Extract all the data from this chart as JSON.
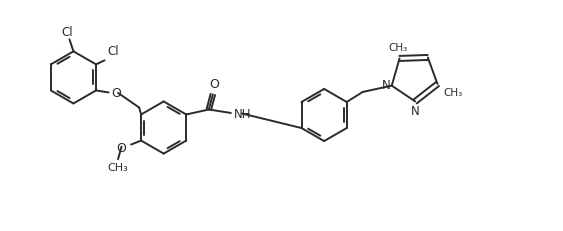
{
  "bg_color": "#ffffff",
  "line_color": "#2b2b2b",
  "line_width": 1.4,
  "font_size": 8.5,
  "figsize": [
    5.63,
    2.32
  ],
  "dpi": 100,
  "xlim": [
    0,
    11.0
  ],
  "ylim": [
    0.0,
    4.6
  ]
}
